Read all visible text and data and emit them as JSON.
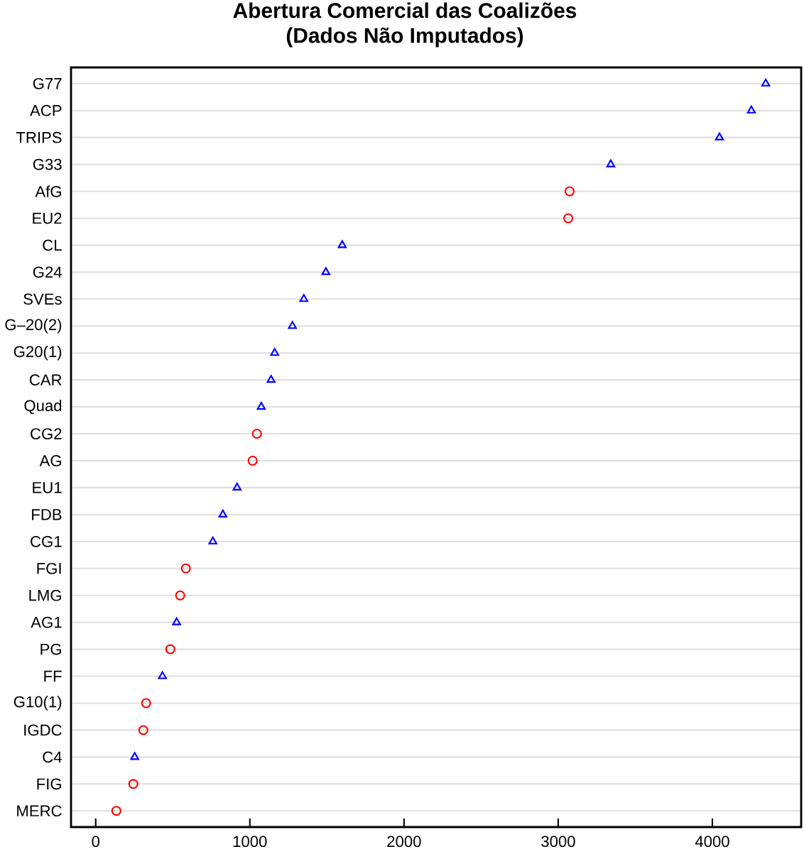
{
  "chart_data": {
    "type": "scatter",
    "orientation": "horizontal",
    "title": "Abertura Comercial das Coalizões",
    "subtitle": "(Dados Não Imputados)",
    "categories": [
      "G77",
      "ACP",
      "TRIPS",
      "G33",
      "AfG",
      "EU2",
      "CL",
      "G24",
      "SVEs",
      "G–20(2)",
      "G20(1)",
      "CAR",
      "Quad",
      "CG2",
      "AG",
      "EU1",
      "FDB",
      "CG1",
      "FGI",
      "LMG",
      "AG1",
      "PG",
      "FF",
      "G10(1)",
      "IGDC",
      "C4",
      "FIG",
      "MERC"
    ],
    "series": [
      {
        "color": "#0000ff",
        "marker": "triangle",
        "values": [
          4346,
          4253,
          4046,
          3341,
          null,
          null,
          1599,
          1493,
          1350,
          1276,
          1161,
          1138,
          1074,
          null,
          null,
          917,
          825,
          760,
          null,
          null,
          525,
          null,
          433,
          null,
          null,
          253,
          null,
          null
        ]
      },
      {
        "color": "#ff0000",
        "marker": "circle",
        "values": [
          null,
          null,
          null,
          null,
          3074,
          3065,
          null,
          null,
          null,
          null,
          null,
          null,
          null,
          1046,
          1018,
          null,
          null,
          null,
          585,
          548,
          null,
          484,
          null,
          327,
          309,
          null,
          244,
          134
        ]
      }
    ],
    "xlim": [
      -160,
      4576
    ],
    "xticks": [
      0,
      1000,
      2000,
      3000,
      4000
    ],
    "grid": "y"
  }
}
